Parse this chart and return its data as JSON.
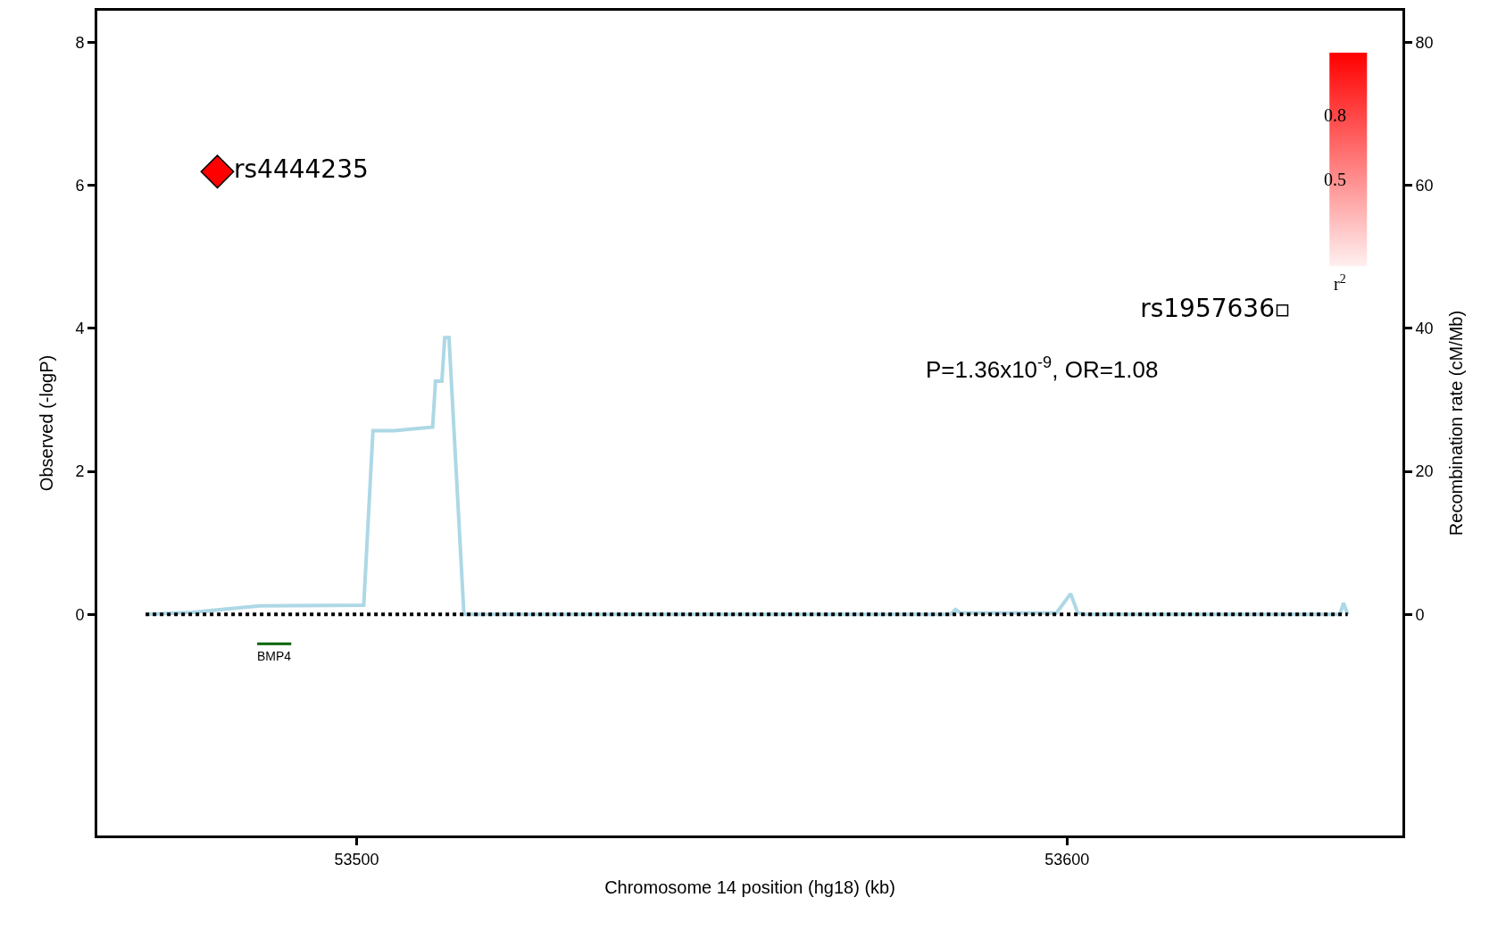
{
  "chart_data": {
    "type": "scatter",
    "xlabel": "Chromosome 14 position (hg18) (kb)",
    "ylabel": "Observed (-logP)",
    "y2label": "Recombination rate (cM/Mb)",
    "xlim": [
      53463.5,
      53647.2
    ],
    "xticks": [
      53500,
      53600
    ],
    "ylim": [
      -3.09,
      8.44
    ],
    "yticks": [
      0,
      2,
      4,
      6,
      8
    ],
    "y2lim": [
      -30.9,
      84.4
    ],
    "y2ticks": [
      0,
      20,
      40,
      60,
      80
    ],
    "series": [
      {
        "name": "rs4444235",
        "marker": "diamond",
        "color": "#ff0000",
        "x": [
          53480.4
        ],
        "values": [
          6.19
        ]
      },
      {
        "name": "rs1957636",
        "marker": "square",
        "color": "#ffffff",
        "x": [
          53630.3
        ],
        "values": [
          4.25
        ]
      },
      {
        "type": "line",
        "axis": "y2",
        "color": "#add8e6",
        "x": [
          53470.3,
          53476.9,
          53486.4,
          53501.0,
          53502.3,
          53505.3,
          53510.7,
          53511.1,
          53512.0,
          53512.4,
          53513.0,
          53515.1,
          53583.6,
          53584.3,
          53585.0,
          53598.5,
          53600.5,
          53601.5,
          53602.6,
          53638.4,
          53638.9,
          53639.5
        ],
        "values": [
          0,
          0.3,
          1.2,
          1.3,
          25.7,
          25.7,
          26.2,
          32.6,
          32.6,
          38.7,
          38.7,
          0,
          0,
          0.7,
          0.2,
          0.2,
          2.9,
          0.2,
          0,
          0,
          1.6,
          0
        ]
      },
      {
        "name": "BMP4",
        "type": "line",
        "color": "#006400",
        "x": [
          53486.0,
          53490.8
        ],
        "values": [
          -0.41,
          -0.41
        ]
      }
    ],
    "ref_lines": [
      {
        "axis": "y",
        "value": 0,
        "color": "#000000",
        "line_style": "dotted"
      }
    ],
    "annotations": [
      "P=1.36x10$^{-9}$, OR=1.08",
      "0.8",
      "0.5",
      "r$^{2}$"
    ]
  }
}
